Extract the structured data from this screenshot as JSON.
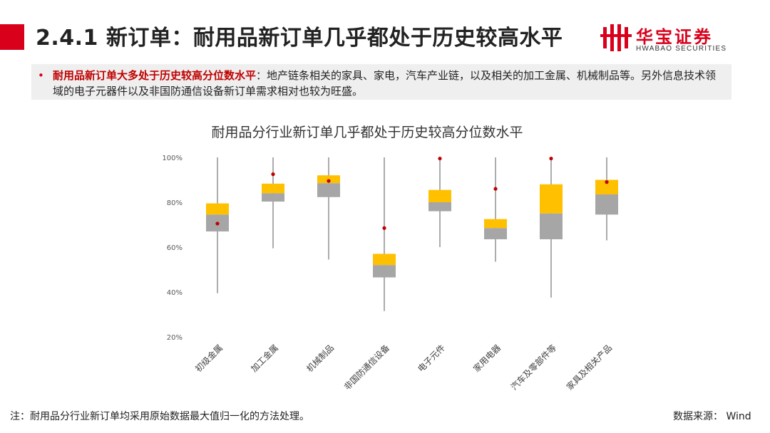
{
  "header": {
    "title": "2.4.1 新订单：耐用品新订单几乎都处于历史较高水平",
    "logo_cn": "华宝证券",
    "logo_en": "HWABAO SECURITIES",
    "accent_color": "#d9001b"
  },
  "bullet": {
    "highlight": "耐用品新订单大多处于历史较高分位数水平",
    "text": "：地产链条相关的家具、家电，汽车产业链，以及相关的加工金属、机械制品等。另外信息技术领域的电子元器件以及非国防通信设备新订单需求相对也较为旺盛。"
  },
  "chart_data": {
    "type": "boxplot",
    "title": "耐用品分行业新订单几乎都处于历史较高分位数水平",
    "ylim": [
      20,
      100
    ],
    "yticks": [
      "20%",
      "40%",
      "60%",
      "80%",
      "100%"
    ],
    "ytick_values": [
      20,
      40,
      60,
      80,
      100
    ],
    "colors": {
      "upper_box": "#ffc000",
      "lower_box": "#a6a6a6",
      "current": "#c00000",
      "whisker": "#595959"
    },
    "categories": [
      "初级金属",
      "加工金属",
      "机械制品",
      "非国防通信设备",
      "电子元件",
      "家用电器",
      "汽车及零部件等",
      "家具及相关产品"
    ],
    "series": [
      {
        "name": "初级金属",
        "min": 39.5,
        "q1": 67.0,
        "median": 74.5,
        "q3": 79.5,
        "max": 100,
        "current": 70.5
      },
      {
        "name": "加工金属",
        "min": 59.5,
        "q1": 80.3,
        "median": 84.0,
        "q3": 88.3,
        "max": 100,
        "current": 92.5
      },
      {
        "name": "机械制品",
        "min": 54.5,
        "q1": 82.3,
        "median": 88.5,
        "q3": 92.0,
        "max": 100,
        "current": 89.5
      },
      {
        "name": "非国防通信设备",
        "min": 31.5,
        "q1": 46.5,
        "median": 52.0,
        "q3": 57.0,
        "max": 100,
        "current": 68.5
      },
      {
        "name": "电子元件",
        "min": 60.0,
        "q1": 76.0,
        "median": 80.0,
        "q3": 85.5,
        "max": 100,
        "current": 99.5
      },
      {
        "name": "家用电器",
        "min": 53.5,
        "q1": 63.5,
        "median": 68.5,
        "q3": 72.5,
        "max": 100,
        "current": 86.0
      },
      {
        "name": "汽车及零部件等",
        "min": 37.5,
        "q1": 63.5,
        "median": 75.0,
        "q3": 88.0,
        "max": 100,
        "current": 99.5
      },
      {
        "name": "家具及相关产品",
        "min": 63.0,
        "q1": 74.5,
        "median": 83.5,
        "q3": 90.0,
        "max": 100,
        "current": 89.0
      }
    ]
  },
  "footer": {
    "note": "注：耐用品分行业新订单均采用原始数据最大值归一化的方法处理。",
    "source": "数据来源： Wind"
  }
}
